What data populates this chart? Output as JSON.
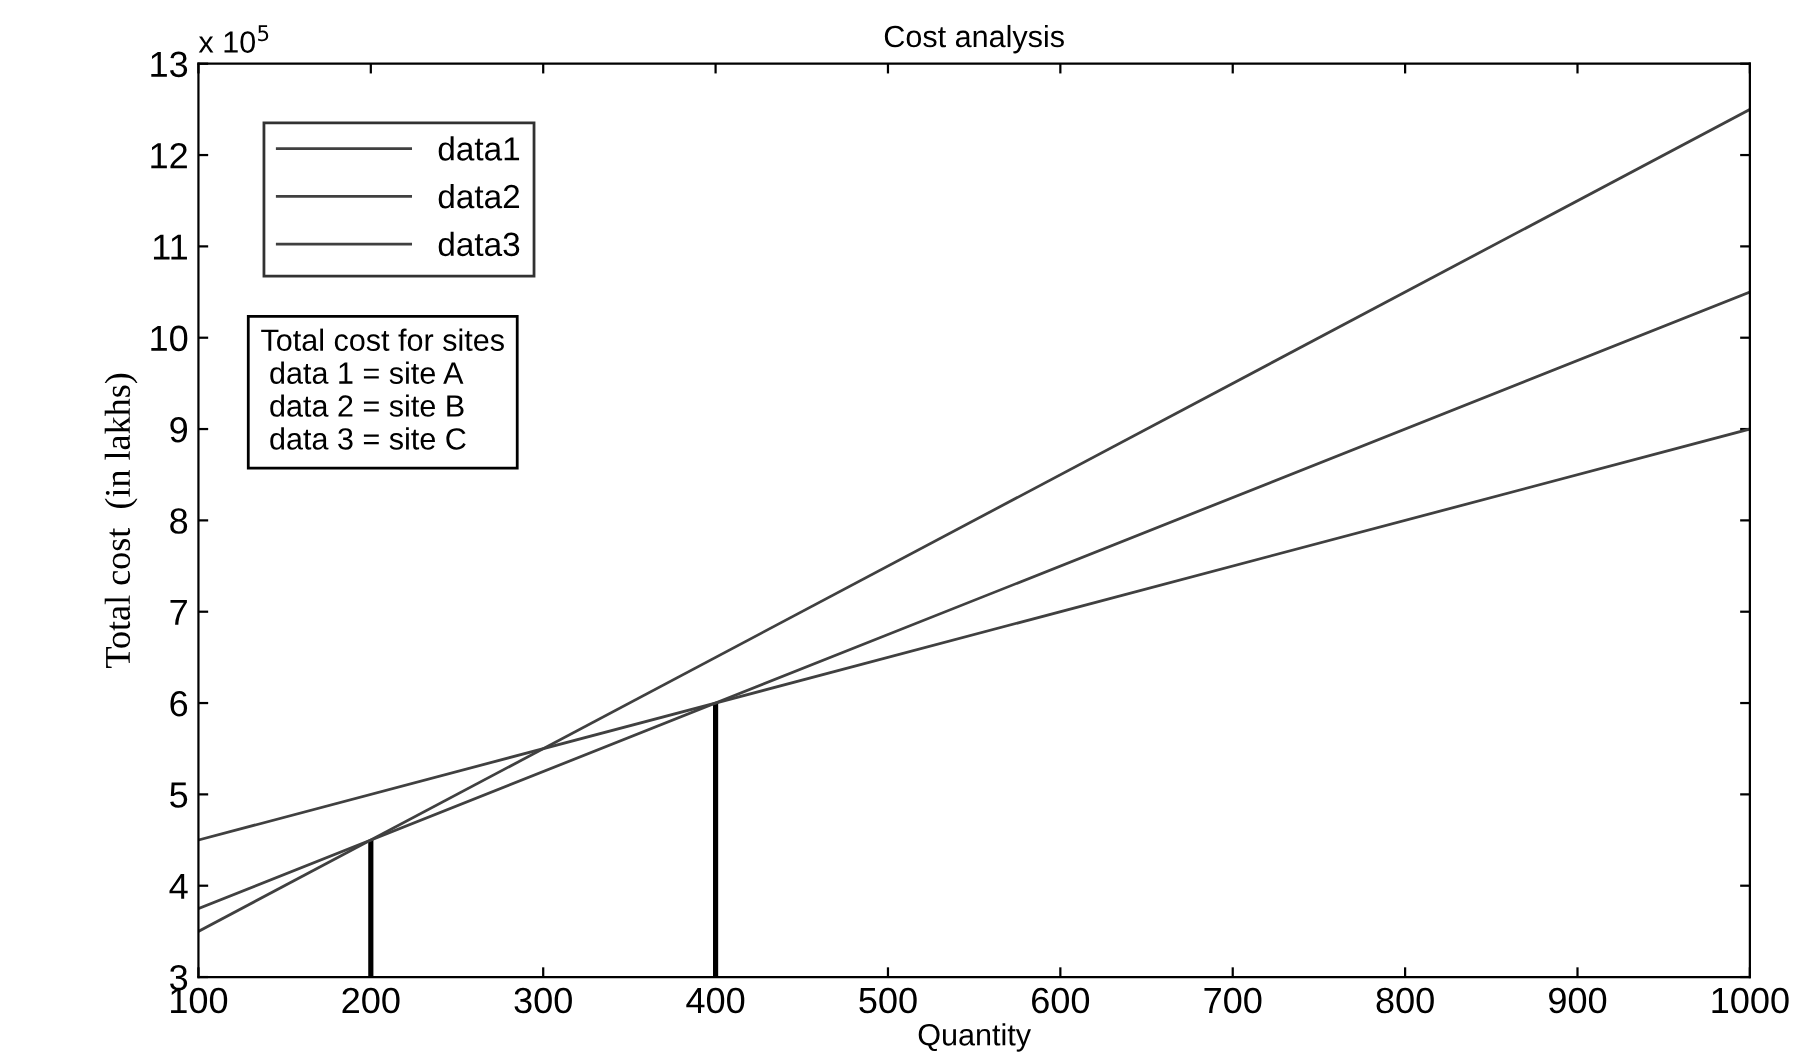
{
  "chart_data": {
    "type": "line",
    "title": "Cost analysis",
    "xlabel": "Quantity",
    "ylabel": "Total cost  (in lakhs)",
    "x": [
      100,
      1000
    ],
    "series": [
      {
        "name": "data1",
        "color": "#404040",
        "values": [
          3.5,
          12.5
        ]
      },
      {
        "name": "data2",
        "color": "#404040",
        "values": [
          3.75,
          10.5
        ]
      },
      {
        "name": "data3",
        "color": "#404040",
        "values": [
          4.5,
          9
        ]
      },
      {
        "type": "bar",
        "color": "#000000",
        "x": [
          200,
          400
        ],
        "values": [
          1.5,
          3
        ],
        "base": [
          3,
          3
        ]
      }
    ],
    "xlim": [
      100,
      1000
    ],
    "ylim": [
      3,
      13
    ],
    "xticks": [
      100,
      200,
      300,
      400,
      500,
      600,
      700,
      800,
      900,
      1000
    ],
    "yticks": [
      3,
      4,
      5,
      6,
      7,
      8,
      9,
      10,
      11,
      12,
      13
    ],
    "annotations": [
      "x 10$^{5}$",
      "Total cost for sites\n data 1 = site A\n data 2 = site B\n data 3 = site C"
    ],
    "legend": "top left",
    "grid": false,
    "line_style": "solid",
    "marker": "none"
  }
}
